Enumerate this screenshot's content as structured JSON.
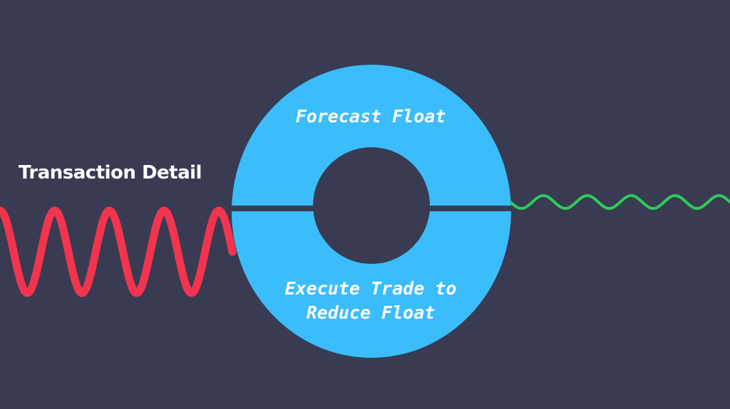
{
  "labels": {
    "input": "Transaction Detail",
    "top": "Forecast Float",
    "bottom_line1": "Execute Trade to",
    "bottom_line2": "Reduce Float"
  },
  "colors": {
    "background": "#383b52",
    "ring": "#3bbdfc",
    "input_wave": "#f2344f",
    "output_wave": "#2ecb57",
    "text": "#ffffff"
  },
  "waves": {
    "input": {
      "cycles": 4,
      "color_key": "input_wave"
    },
    "output": {
      "cycles": 5,
      "color_key": "output_wave"
    }
  }
}
